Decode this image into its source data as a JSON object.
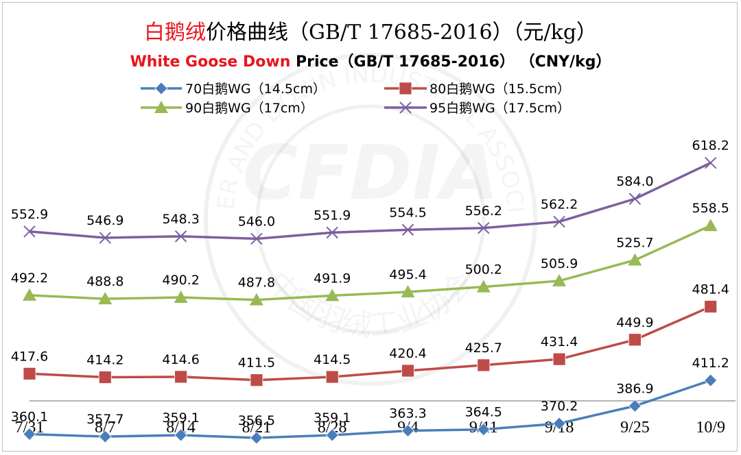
{
  "title": {
    "cn_highlight": "白鹅绒",
    "cn_rest": "价格曲线（GB/T 17685-2016）（元/kg）",
    "en_highlight": "White Goose Down",
    "en_rest": " Price（GB/T 17685-2016） （CNY/kg）"
  },
  "chart_data": {
    "type": "line",
    "categories": [
      "7/31",
      "8/7",
      "8/14",
      "8/21",
      "8/28",
      "9/4",
      "9/11",
      "9/18",
      "9/25",
      "10/9"
    ],
    "series": [
      {
        "name": "70白鹅WG（14.5cm）",
        "marker": "diamond",
        "color": "#4a7ebb",
        "values": [
          360.1,
          357.7,
          359.1,
          356.5,
          359.1,
          363.3,
          364.5,
          370.2,
          386.9,
          411.2
        ]
      },
      {
        "name": "80白鹅WG（15.5cm）",
        "marker": "square",
        "color": "#be4b48",
        "values": [
          417.6,
          414.2,
          414.6,
          411.5,
          414.5,
          420.4,
          425.7,
          431.4,
          449.9,
          481.4
        ]
      },
      {
        "name": "90白鹅WG（17cm）",
        "marker": "triangle",
        "color": "#98b954",
        "values": [
          492.2,
          488.8,
          490.2,
          487.8,
          491.9,
          495.4,
          500.2,
          505.9,
          525.7,
          558.5
        ]
      },
      {
        "name": "95白鹅WG（17.5cm）",
        "marker": "x",
        "color": "#7d5fa0",
        "values": [
          552.9,
          546.9,
          548.3,
          546.0,
          551.9,
          554.5,
          556.2,
          562.2,
          584.0,
          618.2
        ]
      }
    ],
    "legend_position": "top",
    "grid": false,
    "y_axis_visible": false
  },
  "watermark": {
    "text_cn": "中国羽绒工业协会",
    "text_en": "FEATHER AND DOWN INDUSTRIAL ASSOCIATION",
    "logo": "CFDIA"
  }
}
